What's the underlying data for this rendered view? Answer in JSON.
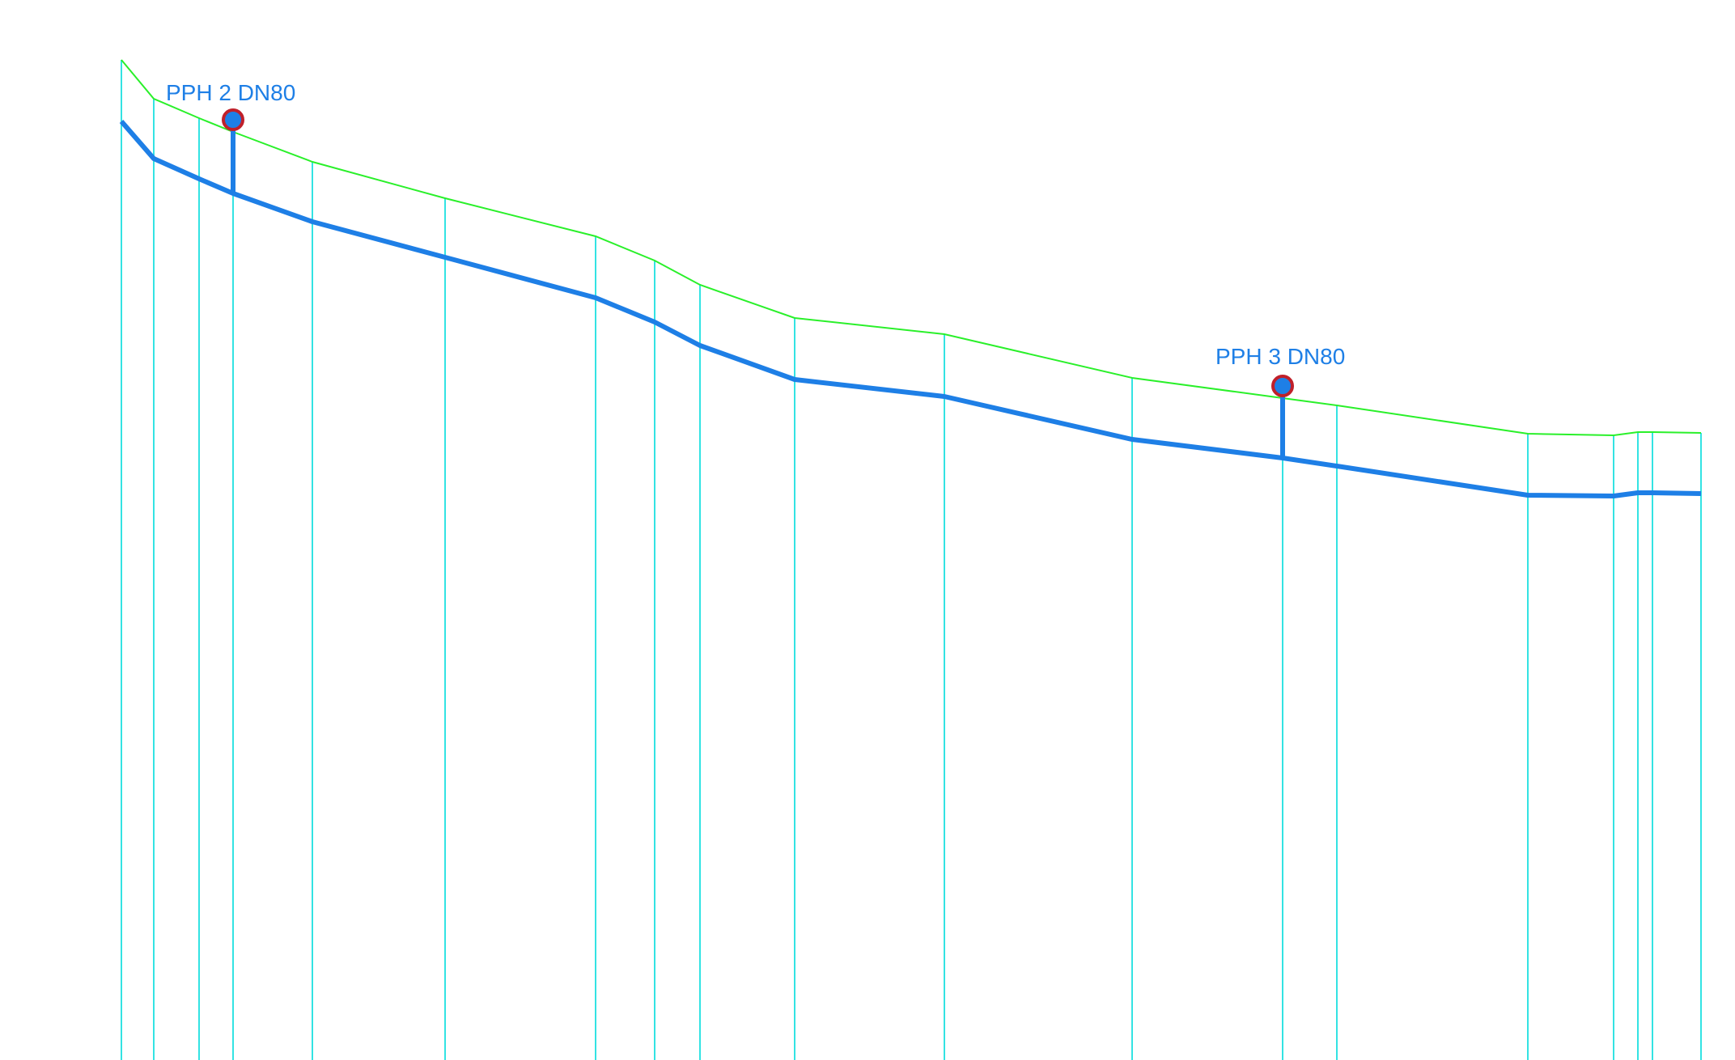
{
  "colors": {
    "background": "#ffffff",
    "station_lines": "#33e3e3",
    "terrain_line": "#2af02a",
    "pipe_line": "#1e7fe6",
    "hydrant_fill": "#1e7fe6",
    "hydrant_outline": "#c0202a",
    "label_text": "#1e7fe6"
  },
  "hydrants": [
    {
      "label": "PPH 2 DN80",
      "icon": "hydrant-marker"
    },
    {
      "label": "PPH 3 DN80",
      "icon": "hydrant-marker"
    }
  ]
}
